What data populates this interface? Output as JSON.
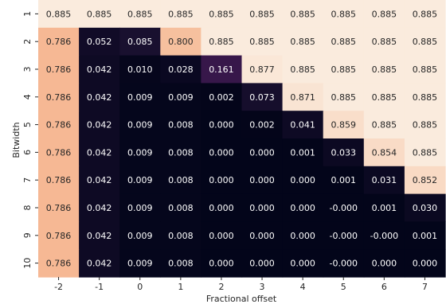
{
  "chart_data": {
    "type": "heatmap",
    "xlabel": "Fractional offset",
    "ylabel": "Bitwidth",
    "x_categories": [
      "-2",
      "-1",
      "0",
      "1",
      "2",
      "3",
      "4",
      "5",
      "6",
      "7"
    ],
    "y_categories": [
      "1",
      "2",
      "3",
      "4",
      "5",
      "6",
      "7",
      "8",
      "9",
      "10"
    ],
    "values": [
      [
        0.885,
        0.885,
        0.885,
        0.885,
        0.885,
        0.885,
        0.885,
        0.885,
        0.885,
        0.885
      ],
      [
        0.786,
        0.052,
        0.085,
        0.8,
        0.885,
        0.885,
        0.885,
        0.885,
        0.885,
        0.885
      ],
      [
        0.786,
        0.042,
        0.01,
        0.028,
        0.161,
        0.877,
        0.885,
        0.885,
        0.885,
        0.885
      ],
      [
        0.786,
        0.042,
        0.009,
        0.009,
        0.002,
        0.073,
        0.871,
        0.885,
        0.885,
        0.885
      ],
      [
        0.786,
        0.042,
        0.009,
        0.008,
        0.0,
        0.002,
        0.041,
        0.859,
        0.885,
        0.885
      ],
      [
        0.786,
        0.042,
        0.009,
        0.008,
        0.0,
        0.0,
        0.001,
        0.033,
        0.854,
        0.885
      ],
      [
        0.786,
        0.042,
        0.009,
        0.008,
        0.0,
        0.0,
        0.0,
        0.001,
        0.031,
        0.852
      ],
      [
        0.786,
        0.042,
        0.009,
        0.008,
        0.0,
        0.0,
        0.0,
        -0.0,
        0.001,
        0.03
      ],
      [
        0.786,
        0.042,
        0.009,
        0.008,
        0.0,
        0.0,
        0.0,
        -0.0,
        -0.0,
        0.001
      ],
      [
        0.786,
        0.042,
        0.009,
        0.008,
        0.0,
        0.0,
        0.0,
        -0.0,
        0.0,
        0.0
      ]
    ],
    "labels": [
      [
        "0.885",
        "0.885",
        "0.885",
        "0.885",
        "0.885",
        "0.885",
        "0.885",
        "0.885",
        "0.885",
        "0.885"
      ],
      [
        "0.786",
        "0.052",
        "0.085",
        "0.800",
        "0.885",
        "0.885",
        "0.885",
        "0.885",
        "0.885",
        "0.885"
      ],
      [
        "0.786",
        "0.042",
        "0.010",
        "0.028",
        "0.161",
        "0.877",
        "0.885",
        "0.885",
        "0.885",
        "0.885"
      ],
      [
        "0.786",
        "0.042",
        "0.009",
        "0.009",
        "0.002",
        "0.073",
        "0.871",
        "0.885",
        "0.885",
        "0.885"
      ],
      [
        "0.786",
        "0.042",
        "0.009",
        "0.008",
        "0.000",
        "0.002",
        "0.041",
        "0.859",
        "0.885",
        "0.885"
      ],
      [
        "0.786",
        "0.042",
        "0.009",
        "0.008",
        "0.000",
        "0.000",
        "0.001",
        "0.033",
        "0.854",
        "0.885"
      ],
      [
        "0.786",
        "0.042",
        "0.009",
        "0.008",
        "0.000",
        "0.000",
        "0.000",
        "0.001",
        "0.031",
        "0.852"
      ],
      [
        "0.786",
        "0.042",
        "0.009",
        "0.008",
        "0.000",
        "0.000",
        "0.000",
        "-0.000",
        "0.001",
        "0.030"
      ],
      [
        "0.786",
        "0.042",
        "0.009",
        "0.008",
        "0.000",
        "0.000",
        "0.000",
        "-0.000",
        "-0.000",
        "0.001"
      ],
      [
        "0.786",
        "0.042",
        "0.009",
        "0.008",
        "0.000",
        "0.000",
        "0.000",
        "-0.000",
        "0.000",
        "0.000"
      ]
    ],
    "vmin": 0.0,
    "vmax": 0.885,
    "colorbar": false,
    "grid": false
  }
}
